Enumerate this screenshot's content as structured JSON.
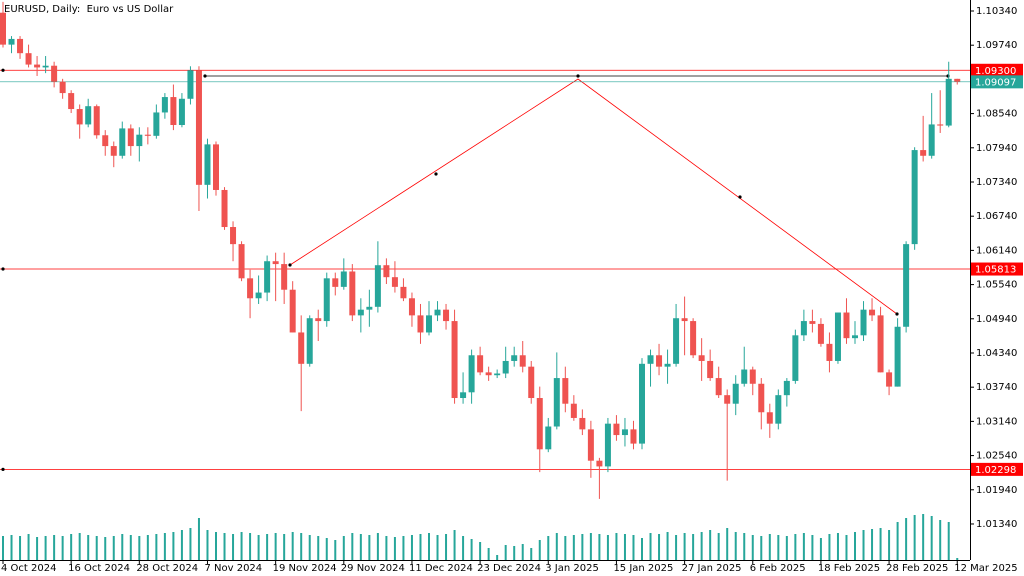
{
  "chart_data": {
    "type": "candlestick",
    "title": "EURUSD, Daily:  Euro vs US Dollar",
    "categories": [
      "4 Oct 2024",
      null,
      null,
      null,
      null,
      null,
      null,
      null,
      "16 Oct 2024",
      null,
      null,
      null,
      null,
      null,
      null,
      null,
      "28 Oct 2024",
      null,
      null,
      null,
      null,
      null,
      null,
      null,
      "7 Nov 2024",
      null,
      null,
      null,
      null,
      null,
      null,
      null,
      "19 Nov 2024",
      null,
      null,
      null,
      null,
      null,
      null,
      null,
      "29 Nov 2024",
      null,
      null,
      null,
      null,
      null,
      null,
      null,
      "11 Dec 2024",
      null,
      null,
      null,
      null,
      null,
      null,
      null,
      "23 Dec 2024",
      null,
      null,
      null,
      null,
      null,
      null,
      null,
      "3 Jan 2025",
      null,
      null,
      null,
      null,
      null,
      null,
      null,
      "15 Jan 2025",
      null,
      null,
      null,
      null,
      null,
      null,
      null,
      "27 Jan 2025",
      null,
      null,
      null,
      null,
      null,
      null,
      null,
      "6 Feb 2025",
      null,
      null,
      null,
      null,
      null,
      null,
      null,
      "18 Feb 2025",
      null,
      null,
      null,
      null,
      null,
      null,
      null,
      "28 Feb 2025",
      null,
      null,
      null,
      null,
      null,
      null,
      null,
      "12 Mar 2025"
    ],
    "open": [
      1.1031,
      1.0975,
      1.0985,
      1.096,
      1.094,
      1.0935,
      1.0938,
      1.091,
      1.089,
      1.0862,
      1.0835,
      1.0867,
      1.0816,
      1.0797,
      1.078,
      1.0828,
      1.0797,
      1.0817,
      1.0815,
      1.0856,
      1.0883,
      1.0834,
      1.088,
      1.093,
      1.0729,
      1.08,
      1.072,
      1.0655,
      1.0625,
      1.0565,
      1.053,
      1.054,
      1.0595,
      1.059,
      1.0545,
      1.047,
      1.0415,
      1.0495,
      1.049,
      1.0565,
      1.055,
      1.0577,
      1.05,
      1.051,
      1.0515,
      1.0588,
      1.0567,
      1.055,
      1.053,
      1.05,
      1.047,
      1.05,
      1.051,
      1.049,
      1.0355,
      1.0365,
      1.043,
      1.04,
      1.0395,
      1.0398,
      1.042,
      1.043,
      1.041,
      1.0355,
      1.0265,
      1.0305,
      1.039,
      1.0345,
      1.032,
      1.03,
      1.0245,
      1.0235,
      1.031,
      1.029,
      1.03,
      1.0275,
      1.0415,
      1.043,
      1.041,
      1.0415,
      1.0495,
      1.049,
      1.043,
      1.042,
      1.039,
      1.036,
      1.0345,
      1.038,
      1.0405,
      1.038,
      1.033,
      1.031,
      1.036,
      1.0385,
      1.0465,
      1.049,
      1.0485,
      1.045,
      1.042,
      1.0505,
      1.046,
      1.0465,
      1.051,
      1.05,
      1.04,
      1.0375,
      1.048,
      1.0625,
      1.079,
      1.078,
      1.0835,
      1.0833,
      1.0915
    ],
    "high": [
      1.105,
      1.099,
      1.099,
      1.0975,
      1.0955,
      1.0955,
      1.0945,
      1.0915,
      1.0895,
      1.087,
      1.088,
      1.087,
      1.0825,
      1.0805,
      1.084,
      1.0835,
      1.083,
      1.083,
      1.087,
      1.089,
      1.0905,
      1.089,
      1.0937,
      1.0937,
      1.081,
      1.0805,
      1.0725,
      1.0665,
      1.063,
      1.058,
      1.057,
      1.0605,
      1.061,
      1.061,
      1.056,
      1.05,
      1.05,
      1.051,
      1.0575,
      1.0575,
      1.06,
      1.059,
      1.053,
      1.0545,
      1.063,
      1.06,
      1.0595,
      1.0565,
      1.054,
      1.052,
      1.0525,
      1.0525,
      1.052,
      1.051,
      1.04,
      1.044,
      1.0445,
      1.041,
      1.0405,
      1.0445,
      1.0445,
      1.0455,
      1.042,
      1.0375,
      1.032,
      1.0435,
      1.041,
      1.036,
      1.0335,
      1.0315,
      1.025,
      1.032,
      1.0325,
      1.032,
      1.0315,
      1.0425,
      1.044,
      1.045,
      1.044,
      1.052,
      1.0533,
      1.0495,
      1.046,
      1.044,
      1.041,
      1.037,
      1.0395,
      1.0445,
      1.041,
      1.039,
      1.0345,
      1.037,
      1.039,
      1.0475,
      1.051,
      1.051,
      1.0495,
      1.047,
      1.0505,
      1.053,
      1.049,
      1.0525,
      1.053,
      1.0515,
      1.0405,
      1.0495,
      1.063,
      1.0795,
      1.085,
      1.089,
      1.0895,
      1.0945,
      1.0915
    ],
    "low": [
      1.097,
      1.096,
      1.095,
      1.0935,
      1.092,
      1.0925,
      1.09,
      1.088,
      1.0855,
      1.081,
      1.083,
      1.081,
      1.078,
      1.076,
      1.0775,
      1.078,
      1.077,
      1.08,
      1.081,
      1.0845,
      1.0825,
      1.083,
      1.087,
      1.0683,
      1.0705,
      1.071,
      1.065,
      1.0595,
      1.056,
      1.0495,
      1.052,
      1.0525,
      1.0525,
      1.052,
      1.047,
      1.0332,
      1.041,
      1.0455,
      1.048,
      1.0535,
      1.0545,
      1.049,
      1.047,
      1.048,
      1.0505,
      1.0555,
      1.054,
      1.0525,
      1.048,
      1.045,
      1.0465,
      1.049,
      1.0475,
      1.0345,
      1.0345,
      1.0345,
      1.0395,
      1.0385,
      1.039,
      1.039,
      1.041,
      1.04,
      1.0345,
      1.0225,
      1.026,
      1.03,
      1.033,
      1.0315,
      1.029,
      1.0215,
      1.0178,
      1.0225,
      1.028,
      1.027,
      1.0265,
      1.0265,
      1.0375,
      1.0395,
      1.038,
      1.041,
      1.043,
      1.0425,
      1.0385,
      1.0385,
      1.0355,
      1.021,
      1.0325,
      1.0375,
      1.036,
      1.03,
      1.0285,
      1.03,
      1.034,
      1.038,
      1.0455,
      1.047,
      1.0445,
      1.04,
      1.0415,
      1.045,
      1.045,
      1.0455,
      1.049,
      1.04,
      1.036,
      1.0375,
      1.047,
      1.0615,
      1.077,
      1.0775,
      1.082,
      1.083,
      1.0905
    ],
    "close": [
      1.0975,
      1.0985,
      1.096,
      1.094,
      1.0935,
      1.0938,
      1.091,
      1.089,
      1.0862,
      1.0835,
      1.0867,
      1.0816,
      1.0797,
      1.078,
      1.0828,
      1.0797,
      1.0817,
      1.0815,
      1.0856,
      1.0883,
      1.0834,
      1.088,
      1.093,
      1.0729,
      1.08,
      1.072,
      1.0655,
      1.0625,
      1.0565,
      1.053,
      1.054,
      1.0595,
      1.059,
      1.0545,
      1.047,
      1.0415,
      1.0495,
      1.049,
      1.0565,
      1.055,
      1.0577,
      1.05,
      1.051,
      1.0515,
      1.0588,
      1.0567,
      1.055,
      1.053,
      1.05,
      1.047,
      1.05,
      1.051,
      1.049,
      1.0355,
      1.0365,
      1.043,
      1.04,
      1.0395,
      1.0398,
      1.042,
      1.043,
      1.041,
      1.0355,
      1.0265,
      1.0305,
      1.039,
      1.0345,
      1.032,
      1.03,
      1.0245,
      1.0235,
      1.031,
      1.029,
      1.03,
      1.0275,
      1.0415,
      1.043,
      1.041,
      1.0415,
      1.0495,
      1.049,
      1.043,
      1.042,
      1.039,
      1.036,
      1.0345,
      1.038,
      1.0405,
      1.038,
      1.033,
      1.031,
      1.036,
      1.0385,
      1.0465,
      1.049,
      1.0485,
      1.045,
      1.042,
      1.0505,
      1.046,
      1.0465,
      1.051,
      1.05,
      1.04,
      1.0375,
      1.048,
      1.0625,
      1.079,
      1.078,
      1.0835,
      1.0833,
      1.0915,
      1.091
    ],
    "volumes": [
      24,
      25,
      24,
      26,
      23,
      24,
      25,
      24,
      26,
      27,
      25,
      24,
      23,
      24,
      26,
      25,
      24,
      25,
      26,
      27,
      28,
      30,
      32,
      42,
      30,
      28,
      27,
      26,
      28,
      27,
      25,
      26,
      27,
      26,
      28,
      27,
      25,
      24,
      22,
      20,
      24,
      27,
      26,
      25,
      27,
      24,
      23,
      24,
      25,
      26,
      27,
      25,
      26,
      30,
      24,
      21,
      18,
      12,
      5,
      15,
      14,
      16,
      12,
      20,
      24,
      27,
      24,
      25,
      26,
      27,
      26,
      25,
      27,
      26,
      25,
      22,
      27,
      26,
      28,
      25,
      27,
      26,
      28,
      30,
      27,
      32,
      28,
      27,
      25,
      24,
      26,
      25,
      24,
      26,
      27,
      25,
      22,
      26,
      27,
      25,
      28,
      30,
      31,
      32,
      30,
      38,
      42,
      45,
      46,
      44,
      40,
      38,
      2
    ],
    "volume_lim": [
      0,
      60
    ],
    "up_color": "#26a69a",
    "down_color": "#ef5350",
    "ylim": [
      1.00708,
      1.10533
    ],
    "yticks": [
      {
        "value": 1.1034,
        "label": "1.10340"
      },
      {
        "value": 1.0974,
        "label": "1.09740"
      },
      {
        "value": 1.0854,
        "label": "1.08540"
      },
      {
        "value": 1.0794,
        "label": "1.07940"
      },
      {
        "value": 1.0734,
        "label": "1.07340"
      },
      {
        "value": 1.0674,
        "label": "1.06740"
      },
      {
        "value": 1.0614,
        "label": "1.06140"
      },
      {
        "value": 1.0554,
        "label": "1.05540"
      },
      {
        "value": 1.0494,
        "label": "1.04940"
      },
      {
        "value": 1.0434,
        "label": "1.04340"
      },
      {
        "value": 1.0374,
        "label": "1.03740"
      },
      {
        "value": 1.0314,
        "label": "1.03140"
      },
      {
        "value": 1.0254,
        "label": "1.02540"
      },
      {
        "value": 1.0194,
        "label": "1.01940"
      },
      {
        "value": 1.0134,
        "label": "1.01340"
      }
    ],
    "levels": [
      {
        "value": 1.093,
        "label": "1.09300"
      },
      {
        "value": 1.05813,
        "label": "1.05813"
      },
      {
        "value": 1.02298,
        "label": "1.02298"
      }
    ],
    "level_color": "#ff0000",
    "current_price": {
      "value": 1.09097,
      "label": "1.09097"
    },
    "current_color": "#26a69a"
  }
}
